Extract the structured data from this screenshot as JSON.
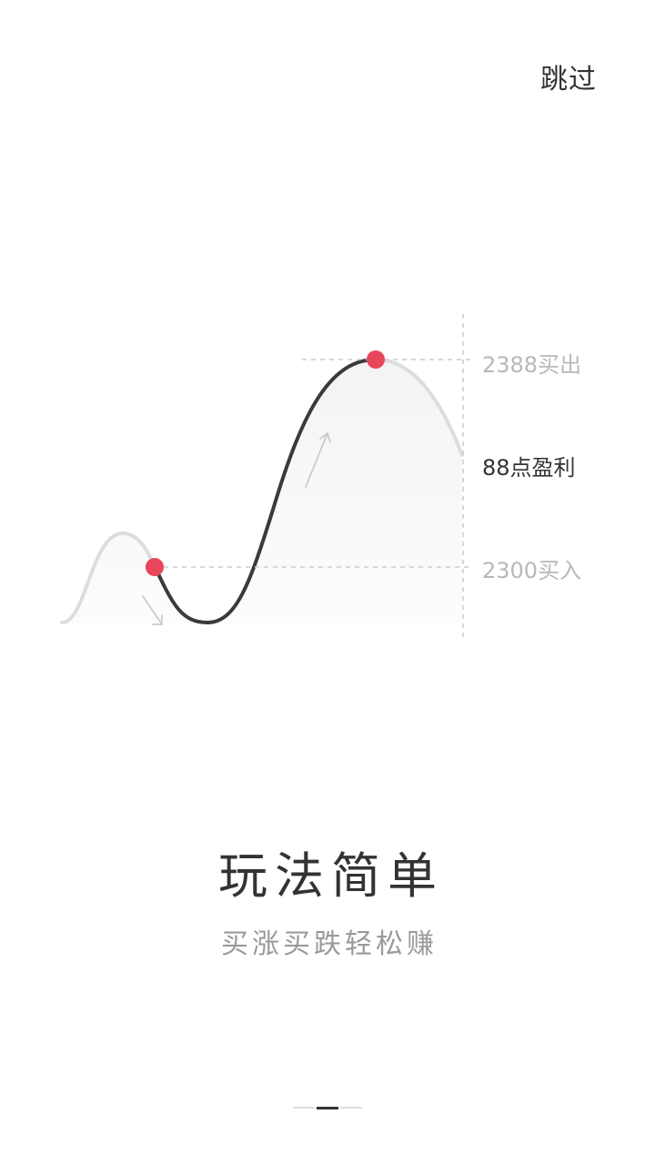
{
  "header": {
    "skip_label": "跳过"
  },
  "illustration": {
    "sell_label": "2388买出",
    "profit_label": "88点盈利",
    "buy_label": "2300买入",
    "colors": {
      "accent_dot": "#e8465a",
      "main_curve": "#3a3a3a",
      "faded_curve": "#dddddd",
      "guide_line": "#cccccc"
    }
  },
  "content": {
    "title": "玩法简单",
    "subtitle": "买涨买跌轻松赚"
  },
  "pager": {
    "total": 3,
    "active_index": 1
  }
}
